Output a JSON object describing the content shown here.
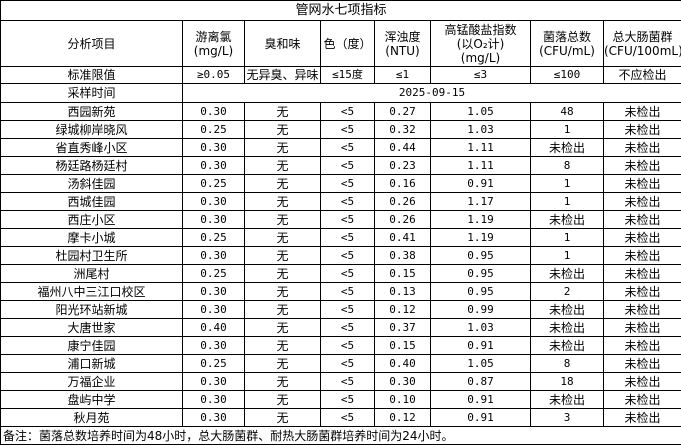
{
  "title": "管网水七项指标",
  "headers": [
    "分析项目",
    "游离氯\n(mg/L)",
    "臭和味",
    "色（度）",
    "浑浊度\n(NTU)",
    "高锰酸盐指数\n(以O₂计)\n(mg/L)",
    "菌落总数\n(CFU/mL)",
    "总大肠菌群\n(CFU/100mL)"
  ],
  "standard": [
    "标准限值",
    "≥0.05",
    "无异臭、异味",
    "≤15度",
    "≤1",
    "≤3",
    "≤100",
    "不应检出"
  ],
  "sampling": {
    "label": "采样时间",
    "date": "2025-09-15"
  },
  "rows": [
    [
      "西园新苑",
      "0.30",
      "无",
      "<5",
      "0.27",
      "1.05",
      "48",
      "未检出"
    ],
    [
      "绿城柳岸晓风",
      "0.25",
      "无",
      "<5",
      "0.32",
      "1.03",
      "1",
      "未检出"
    ],
    [
      "省直秀峰小区",
      "0.30",
      "无",
      "<5",
      "0.44",
      "1.11",
      "未检出",
      "未检出"
    ],
    [
      "杨廷路杨廷村",
      "0.30",
      "无",
      "<5",
      "0.23",
      "1.11",
      "8",
      "未检出"
    ],
    [
      "汤斜佳园",
      "0.25",
      "无",
      "<5",
      "0.16",
      "0.91",
      "1",
      "未检出"
    ],
    [
      "西城佳园",
      "0.30",
      "无",
      "<5",
      "0.26",
      "1.17",
      "1",
      "未检出"
    ],
    [
      "西庄小区",
      "0.30",
      "无",
      "<5",
      "0.26",
      "1.19",
      "未检出",
      "未检出"
    ],
    [
      "摩卡小城",
      "0.25",
      "无",
      "<5",
      "0.41",
      "1.19",
      "1",
      "未检出"
    ],
    [
      "杜园村卫生所",
      "0.30",
      "无",
      "<5",
      "0.38",
      "0.95",
      "1",
      "未检出"
    ],
    [
      "洲尾村",
      "0.25",
      "无",
      "<5",
      "0.15",
      "0.95",
      "未检出",
      "未检出"
    ],
    [
      "福州八中三江口校区",
      "0.30",
      "无",
      "<5",
      "0.13",
      "0.95",
      "2",
      "未检出"
    ],
    [
      "阳光环站新城",
      "0.30",
      "无",
      "<5",
      "0.12",
      "0.99",
      "未检出",
      "未检出"
    ],
    [
      "大唐世家",
      "0.40",
      "无",
      "<5",
      "0.37",
      "1.03",
      "未检出",
      "未检出"
    ],
    [
      "康宁佳园",
      "0.30",
      "无",
      "<5",
      "0.15",
      "0.91",
      "未检出",
      "未检出"
    ],
    [
      "浦口新城",
      "0.25",
      "无",
      "<5",
      "0.40",
      "1.05",
      "8",
      "未检出"
    ],
    [
      "万福企业",
      "0.30",
      "无",
      "<5",
      "0.30",
      "0.87",
      "18",
      "未检出"
    ],
    [
      "盘屿中学",
      "0.30",
      "无",
      "<5",
      "0.10",
      "0.91",
      "未检出",
      "未检出"
    ],
    [
      "秋月苑",
      "0.30",
      "无",
      "<5",
      "0.12",
      "0.91",
      "3",
      "未检出"
    ]
  ],
  "note": "备注：菌落总数培养时间为48小时，总大肠菌群、耐热大肠菌群培养时间为24小时。"
}
